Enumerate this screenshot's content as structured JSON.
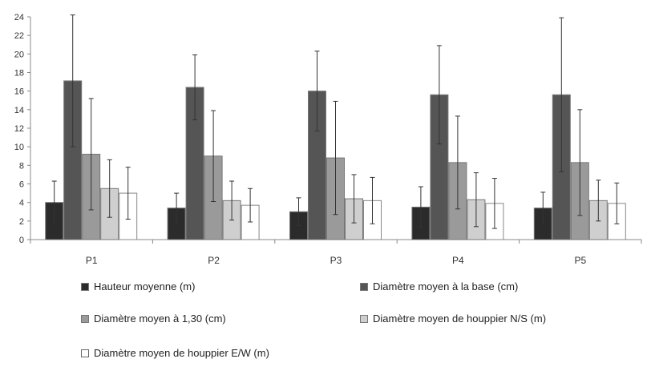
{
  "chart_data": {
    "type": "bar",
    "categories": [
      "P1",
      "P2",
      "P3",
      "P4",
      "P5"
    ],
    "ylim": [
      0,
      24
    ],
    "yticks": [
      0,
      2,
      4,
      6,
      8,
      10,
      12,
      14,
      16,
      18,
      20,
      22,
      24
    ],
    "grid": false,
    "legend_position": "bottom",
    "error_bars": true,
    "series": [
      {
        "name": "Hauteur moyenne (m)",
        "color": "#2b2b2b",
        "values": [
          4.0,
          3.4,
          3.0,
          3.5,
          3.4
        ],
        "errors": [
          2.3,
          1.6,
          1.5,
          2.2,
          1.7
        ]
      },
      {
        "name": "Diamètre moyen à la base (cm)",
        "color": "#555555",
        "values": [
          17.1,
          16.4,
          16.0,
          15.6,
          15.6
        ],
        "errors": [
          7.1,
          3.5,
          4.3,
          5.3,
          8.3
        ]
      },
      {
        "name": "Diamètre moyen  à 1,30 (cm)",
        "color": "#9a9a9a",
        "values": [
          9.2,
          9.0,
          8.8,
          8.3,
          8.3
        ],
        "errors": [
          6.0,
          4.9,
          6.1,
          5.0,
          5.7
        ]
      },
      {
        "name": "Diamètre moyen de houppier N/S (m)",
        "color": "#cfcfcf",
        "values": [
          5.5,
          4.2,
          4.4,
          4.3,
          4.2
        ],
        "errors": [
          3.1,
          2.1,
          2.6,
          2.9,
          2.2
        ]
      },
      {
        "name": "Diamètre moyen de houppier E/W (m)",
        "color": "#ffffff",
        "values": [
          5.0,
          3.7,
          4.2,
          3.9,
          3.9
        ],
        "errors": [
          2.8,
          1.8,
          2.5,
          2.7,
          2.2
        ]
      }
    ]
  }
}
